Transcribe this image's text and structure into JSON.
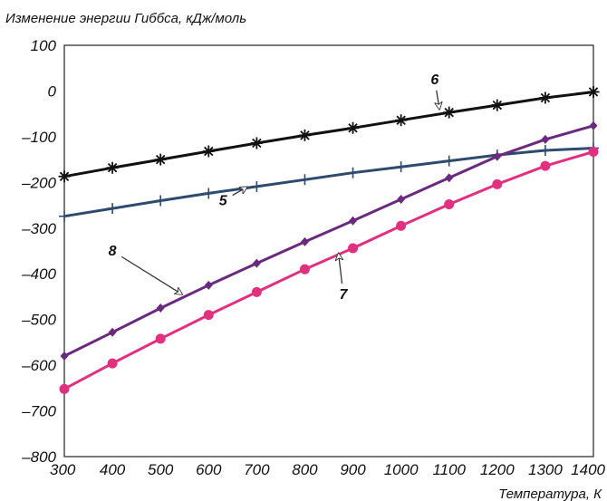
{
  "chart_data": {
    "type": "line",
    "title": "",
    "ylabel": "Изменение энергии Гиббса, кДж/моль",
    "xlabel": "Температура, К",
    "xlim": [
      300,
      1400
    ],
    "ylim": [
      -800,
      100
    ],
    "xticks": [
      300,
      400,
      500,
      600,
      700,
      800,
      900,
      1000,
      1100,
      1200,
      1300,
      1400
    ],
    "yticks": [
      100,
      0,
      -100,
      -200,
      -300,
      -400,
      -500,
      -600,
      -700,
      -800
    ],
    "ytick_labels": [
      "100",
      "0",
      "–100",
      "–200",
      "–300",
      "–400",
      "–500",
      "–600",
      "–700",
      "–800"
    ],
    "grid": false,
    "series": [
      {
        "name": "6",
        "color": "#111111",
        "marker": "asterisk",
        "x": [
          300,
          400,
          500,
          600,
          700,
          800,
          900,
          1000,
          1100,
          1200,
          1300,
          1400
        ],
        "y": [
          -187,
          -168,
          -150,
          -132,
          -114,
          -97,
          -81,
          -64,
          -47,
          -31,
          -15,
          -2
        ],
        "label_at": [
          1070,
          15
        ],
        "arrow_to": [
          1080,
          -40
        ]
      },
      {
        "name": "5",
        "color": "#2e4a6e",
        "marker": "plus",
        "x": [
          300,
          400,
          500,
          600,
          700,
          800,
          900,
          1000,
          1100,
          1200,
          1300,
          1400
        ],
        "y": [
          -274,
          -257,
          -240,
          -224,
          -209,
          -194,
          -179,
          -166,
          -153,
          -140,
          -130,
          -125
        ],
        "label_at": [
          630,
          -250
        ],
        "arrow_to": [
          680,
          -210
        ]
      },
      {
        "name": "8",
        "color": "#6a2a7e",
        "marker": "diamond",
        "x": [
          300,
          400,
          500,
          600,
          700,
          800,
          900,
          1000,
          1100,
          1200,
          1300,
          1400
        ],
        "y": [
          -580,
          -528,
          -475,
          -425,
          -377,
          -330,
          -284,
          -237,
          -190,
          -143,
          -106,
          -76
        ],
        "label_at": [
          400,
          -360
        ],
        "arrow_to": [
          545,
          -445
        ]
      },
      {
        "name": "7",
        "color": "#e0307f",
        "marker": "circle",
        "x": [
          300,
          400,
          500,
          600,
          700,
          800,
          900,
          1000,
          1100,
          1200,
          1300,
          1400
        ],
        "y": [
          -652,
          -596,
          -542,
          -490,
          -440,
          -390,
          -344,
          -295,
          -248,
          -204,
          -164,
          -133
        ],
        "label_at": [
          880,
          -455
        ],
        "arrow_to": [
          870,
          -355
        ]
      }
    ]
  }
}
